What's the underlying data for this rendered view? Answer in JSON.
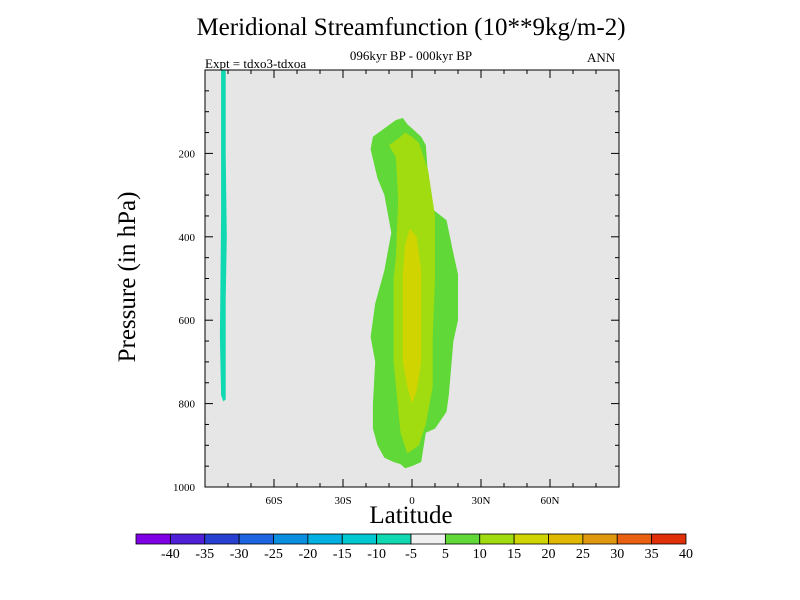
{
  "title": "Meridional Streamfunction (10**9kg/m-2)",
  "subtitle": "096kyr BP - 000kyr BP",
  "expt_label": "Expt = tdxo3-tdxoa",
  "season": "ANN",
  "chart_data": {
    "type": "heatmap",
    "xlabel": "Latitude",
    "ylabel": "Pressure (in hPa)",
    "xlim": [
      -90,
      90
    ],
    "ylim": [
      1000,
      0
    ],
    "x_ticks": [
      {
        "value": -60,
        "label": "60S"
      },
      {
        "value": -30,
        "label": "30S"
      },
      {
        "value": 0,
        "label": "0"
      },
      {
        "value": 30,
        "label": "30N"
      },
      {
        "value": 60,
        "label": "60N"
      }
    ],
    "y_ticks": [
      {
        "value": 200,
        "label": "200"
      },
      {
        "value": 400,
        "label": "400"
      },
      {
        "value": 600,
        "label": "600"
      },
      {
        "value": 800,
        "label": "800"
      },
      {
        "value": 1000,
        "label": "1000"
      }
    ],
    "background_color": "#e6e6e6",
    "colorbar": {
      "levels": [
        "-40",
        "-35",
        "-30",
        "-25",
        "-20",
        "-15",
        "-10",
        "-5",
        "5",
        "10",
        "15",
        "20",
        "25",
        "30",
        "35",
        "40"
      ],
      "colors": [
        "#8000e6",
        "#5020d8",
        "#2840d0",
        "#1c64e0",
        "#0a8ee0",
        "#00b0e0",
        "#00c8d0",
        "#10d8b0",
        "#f0f0f0",
        "#60d838",
        "#a0dc10",
        "#d0d400",
        "#e0b800",
        "#e09810",
        "#e86010",
        "#e03008"
      ]
    },
    "contours": [
      {
        "name": "-10 to -5",
        "color": "#10d8b0",
        "points": [
          [
            -83,
            0
          ],
          [
            -81,
            0
          ],
          [
            -81,
            200
          ],
          [
            -80.5,
            400
          ],
          [
            -81,
            550
          ],
          [
            -81,
            700
          ],
          [
            -81,
            790
          ],
          [
            -82,
            795
          ],
          [
            -83,
            780
          ],
          [
            -83.5,
            640
          ],
          [
            -83,
            350
          ],
          [
            -83,
            100
          ]
        ]
      },
      {
        "name": "5 to 10",
        "color": "#60d838",
        "points": [
          [
            -9,
            390
          ],
          [
            -12,
            300
          ],
          [
            -15,
            260
          ],
          [
            -18,
            190
          ],
          [
            -17,
            160
          ],
          [
            -12,
            140
          ],
          [
            -7,
            120
          ],
          [
            -4,
            115
          ],
          [
            -2,
            130
          ],
          [
            4,
            160
          ],
          [
            6,
            180
          ],
          [
            8,
            330
          ],
          [
            15,
            360
          ],
          [
            18,
            440
          ],
          [
            20,
            490
          ],
          [
            20,
            600
          ],
          [
            18,
            650
          ],
          [
            16,
            780
          ],
          [
            15,
            820
          ],
          [
            10,
            860
          ],
          [
            6,
            870
          ],
          [
            4,
            940
          ],
          [
            0,
            950
          ],
          [
            -3,
            955
          ],
          [
            -5,
            945
          ],
          [
            -8,
            940
          ],
          [
            -12,
            930
          ],
          [
            -15,
            900
          ],
          [
            -17,
            860
          ],
          [
            -17,
            800
          ],
          [
            -16,
            700
          ],
          [
            -18,
            640
          ],
          [
            -16,
            560
          ],
          [
            -12,
            480
          ]
        ]
      },
      {
        "name": "10 to 15",
        "color": "#a0dc10",
        "points": [
          [
            -7,
            210
          ],
          [
            -10,
            180
          ],
          [
            -6,
            165
          ],
          [
            -3,
            150
          ],
          [
            0,
            160
          ],
          [
            3,
            175
          ],
          [
            7,
            240
          ],
          [
            10,
            350
          ],
          [
            10,
            440
          ],
          [
            10,
            500
          ],
          [
            9,
            640
          ],
          [
            9,
            760
          ],
          [
            6,
            850
          ],
          [
            3,
            900
          ],
          [
            -2,
            920
          ],
          [
            -5,
            870
          ],
          [
            -8,
            700
          ],
          [
            -8,
            600
          ],
          [
            -8,
            500
          ],
          [
            -7,
            450
          ],
          [
            -6,
            310
          ]
        ]
      },
      {
        "name": "15 to 20",
        "color": "#d0d400",
        "points": [
          [
            -4,
            490
          ],
          [
            -3,
            420
          ],
          [
            -1,
            380
          ],
          [
            2,
            400
          ],
          [
            4,
            480
          ],
          [
            4,
            600
          ],
          [
            4,
            700
          ],
          [
            2,
            770
          ],
          [
            0,
            800
          ],
          [
            -2,
            760
          ],
          [
            -4,
            700
          ],
          [
            -4,
            600
          ]
        ]
      }
    ]
  }
}
